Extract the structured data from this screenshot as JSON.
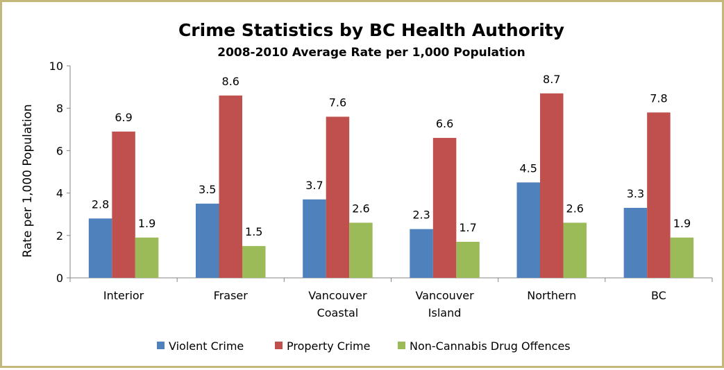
{
  "chart_data": {
    "type": "bar",
    "title": "Crime Statistics by BC Health Authority",
    "subtitle": "2008-2010 Average Rate per 1,000 Population",
    "ylabel": "Rate per 1,000 Population",
    "xlabel": "",
    "ylim": [
      0,
      10
    ],
    "yticks": [
      0,
      2,
      4,
      6,
      8,
      10
    ],
    "grid": false,
    "legend_position": "bottom",
    "categories": [
      [
        "Interior"
      ],
      [
        "Fraser"
      ],
      [
        "Vancouver",
        "Coastal"
      ],
      [
        "Vancouver",
        "Island"
      ],
      [
        "Northern"
      ],
      [
        "BC"
      ]
    ],
    "series": [
      {
        "name": "Violent Crime",
        "color": "#4f81bd",
        "values": [
          2.8,
          3.5,
          3.7,
          2.3,
          4.5,
          3.3
        ]
      },
      {
        "name": "Property Crime",
        "color": "#c0504d",
        "values": [
          6.9,
          8.6,
          7.6,
          6.6,
          8.7,
          7.8
        ]
      },
      {
        "name": "Non-Cannabis Drug Offences",
        "color": "#9bbb59",
        "values": [
          1.9,
          1.5,
          2.6,
          1.7,
          2.6,
          1.9
        ]
      }
    ]
  }
}
